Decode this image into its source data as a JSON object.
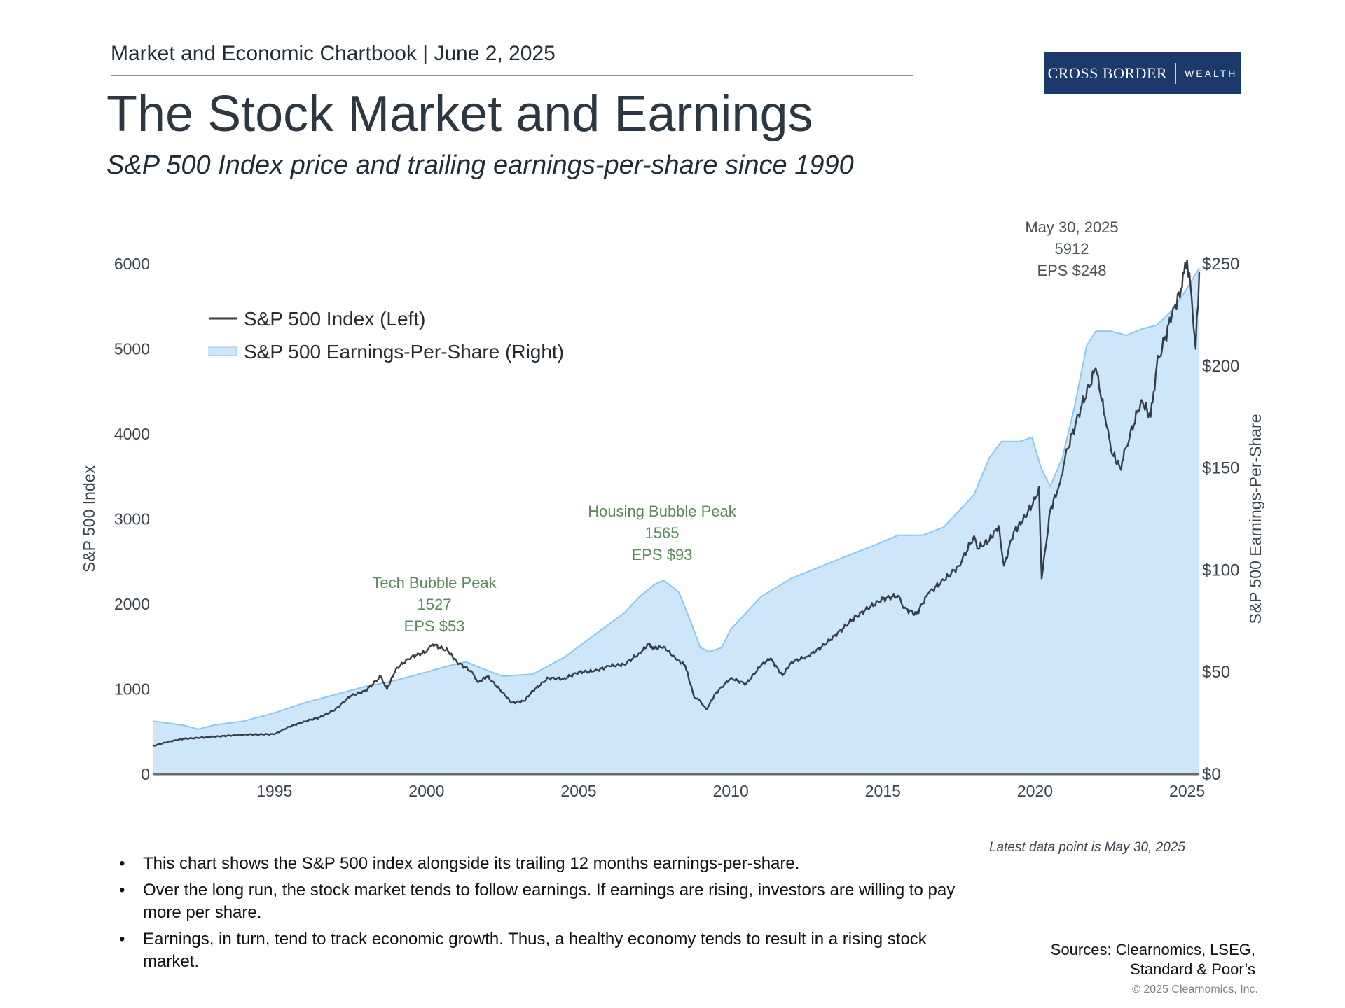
{
  "header": {
    "chartbook": "Market and Economic Chartbook | June 2, 2025",
    "logo_main": "Cross Border",
    "logo_sub": "WEALTH"
  },
  "title": "The Stock Market and Earnings",
  "subtitle": "S&P 500 Index price and trailing earnings-per-share since 1990",
  "note": "Latest data point is May 30, 2025",
  "bullets": [
    "This chart shows the S&P 500 index alongside its trailing 12 months earnings-per-share.",
    "Over the long run, the stock market tends to follow earnings. If earnings are rising, investors are willing to pay more per share.",
    "Earnings, in turn, tend to track economic growth. Thus, a healthy economy tends to result in a rising stock market."
  ],
  "sources": [
    "Sources: Clearnomics, LSEG,",
    "Standard & Poor’s"
  ],
  "copyright": "© 2025 Clearnomics, Inc.",
  "colors": {
    "index_line": "#353e48",
    "eps_fill": "#cde6f9",
    "eps_line": "#8ec6f0",
    "annotation": "#5b8a5b",
    "logo_bg": "#1b3a6b"
  },
  "chart_data": {
    "type": "area",
    "ylabel_left": "S&P 500 Index",
    "ylabel_right": "S&P 500 Earnings-Per-Share",
    "xlim": [
      1991,
      2025.4
    ],
    "ylim_left": [
      0,
      6000
    ],
    "ylim_right": [
      0,
      250
    ],
    "x_ticks": [
      1995,
      2000,
      2005,
      2010,
      2015,
      2020,
      2025
    ],
    "y_left_ticks": [
      0,
      1000,
      2000,
      3000,
      4000,
      5000,
      6000
    ],
    "y_right_ticks": [
      "$0",
      "$50",
      "$100",
      "$150",
      "$200",
      "$250"
    ],
    "legend": {
      "placement": "upper-left",
      "entries": [
        "S&P 500 Index (Left)",
        "S&P 500 Earnings-Per-Share (Right)"
      ]
    },
    "annotations": [
      {
        "lines": [
          "Tech Bubble Peak",
          "1527",
          "EPS $53"
        ],
        "x": 2000.2,
        "y": 1527,
        "color": "green"
      },
      {
        "lines": [
          "Housing Bubble Peak",
          "1565",
          "EPS $93"
        ],
        "x": 2007.8,
        "y": 1565,
        "color": "green"
      },
      {
        "lines": [
          "May 30, 2025",
          "5912",
          "EPS $248"
        ],
        "x": 2025.4,
        "y": 5912,
        "color": "gray"
      }
    ],
    "series": [
      {
        "name": "S&P 500 Index (Left)",
        "axis": "left",
        "x": [
          1991.0,
          1991.5,
          1992.0,
          1993.0,
          1994.0,
          1995.0,
          1995.5,
          1996.0,
          1996.5,
          1997.0,
          1997.5,
          1998.0,
          1998.5,
          1998.7,
          1999.0,
          1999.5,
          2000.0,
          2000.2,
          2000.7,
          2001.0,
          2001.5,
          2001.7,
          2002.0,
          2002.5,
          2002.8,
          2003.2,
          2003.5,
          2004.0,
          2004.5,
          2005.0,
          2005.5,
          2006.0,
          2006.5,
          2007.0,
          2007.3,
          2007.5,
          2007.8,
          2008.2,
          2008.5,
          2008.8,
          2009.0,
          2009.2,
          2009.5,
          2010.0,
          2010.5,
          2011.0,
          2011.3,
          2011.7,
          2012.0,
          2012.5,
          2013.0,
          2013.5,
          2014.0,
          2014.5,
          2015.0,
          2015.5,
          2015.7,
          2016.1,
          2016.5,
          2017.0,
          2017.5,
          2018.0,
          2018.1,
          2018.5,
          2018.8,
          2018.98,
          2019.3,
          2019.6,
          2020.0,
          2020.13,
          2020.22,
          2020.5,
          2020.8,
          2021.0,
          2021.5,
          2022.0,
          2022.3,
          2022.5,
          2022.8,
          2023.0,
          2023.5,
          2023.8,
          2024.0,
          2024.5,
          2024.8,
          2025.0,
          2025.15,
          2025.28,
          2025.4
        ],
        "values": [
          330,
          380,
          415,
          440,
          465,
          470,
          560,
          620,
          670,
          760,
          920,
          980,
          1150,
          1000,
          1240,
          1380,
          1440,
          1527,
          1450,
          1320,
          1200,
          1080,
          1150,
          960,
          840,
          860,
          980,
          1130,
          1120,
          1200,
          1210,
          1270,
          1290,
          1420,
          1530,
          1480,
          1500,
          1350,
          1280,
          900,
          860,
          760,
          950,
          1130,
          1060,
          1280,
          1360,
          1160,
          1320,
          1380,
          1500,
          1650,
          1820,
          1950,
          2060,
          2100,
          1950,
          1880,
          2130,
          2280,
          2450,
          2800,
          2650,
          2750,
          2920,
          2450,
          2850,
          2980,
          3230,
          3380,
          2300,
          3100,
          3400,
          3750,
          4300,
          4770,
          4200,
          3800,
          3600,
          3850,
          4400,
          4200,
          4800,
          5400,
          5700,
          6040,
          5600,
          5000,
          5912
        ]
      },
      {
        "name": "S&P 500 Earnings-Per-Share (Right)",
        "axis": "right",
        "x": [
          1991.0,
          1992.0,
          1992.5,
          1993.0,
          1994.0,
          1995.0,
          1996.0,
          1997.0,
          1998.0,
          1998.7,
          1999.0,
          2000.0,
          2000.7,
          2001.3,
          2001.8,
          2002.5,
          2003.5,
          2004.5,
          2005.5,
          2006.5,
          2007.0,
          2007.5,
          2007.8,
          2008.3,
          2008.7,
          2009.0,
          2009.3,
          2009.7,
          2010.0,
          2011.0,
          2012.0,
          2013.0,
          2014.0,
          2014.7,
          2015.5,
          2016.3,
          2017.0,
          2018.0,
          2018.5,
          2018.9,
          2019.5,
          2019.9,
          2020.2,
          2020.5,
          2020.9,
          2021.3,
          2021.7,
          2022.0,
          2022.5,
          2023.0,
          2023.5,
          2024.0,
          2024.5,
          2025.0,
          2025.4
        ],
        "values": [
          26,
          24,
          22,
          24,
          26,
          30,
          35,
          39,
          43,
          45,
          46,
          50,
          53,
          55,
          52,
          48,
          49,
          57,
          68,
          79,
          87,
          93,
          95,
          89,
          74,
          62,
          60,
          62,
          71,
          87,
          96,
          102,
          108,
          112,
          117,
          117,
          121,
          137,
          155,
          163,
          163,
          165,
          150,
          141,
          155,
          180,
          210,
          217,
          217,
          215,
          218,
          220,
          227,
          238,
          248
        ]
      }
    ]
  }
}
